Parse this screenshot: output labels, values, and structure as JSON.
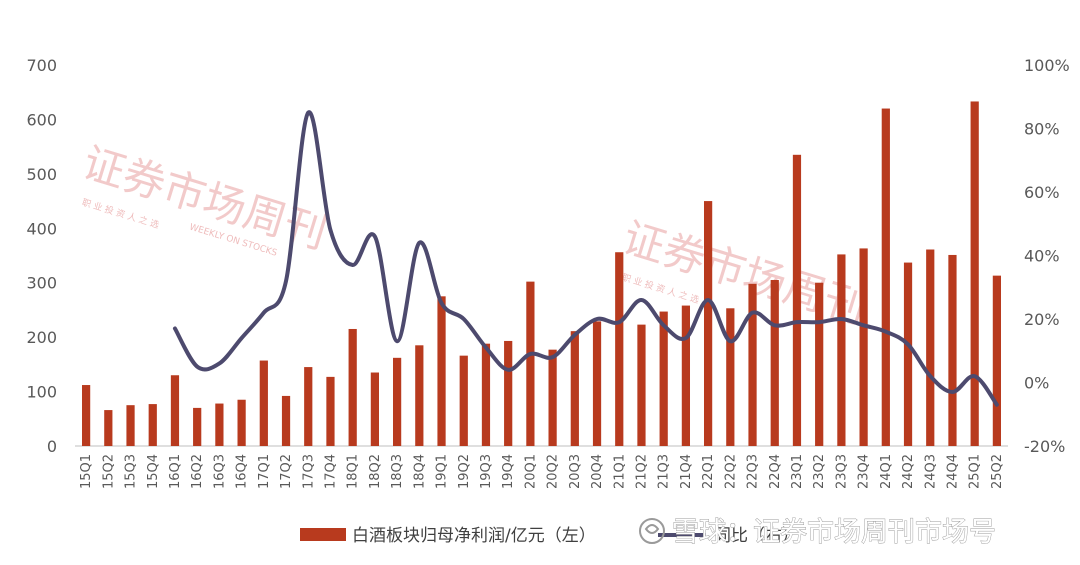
{
  "chart_data": {
    "type": "bar",
    "categories": [
      "15Q1",
      "15Q2",
      "15Q3",
      "15Q4",
      "16Q1",
      "16Q2",
      "16Q3",
      "16Q4",
      "17Q1",
      "17Q2",
      "17Q3",
      "17Q4",
      "18Q1",
      "18Q2",
      "18Q3",
      "18Q4",
      "19Q1",
      "19Q2",
      "19Q3",
      "19Q4",
      "20Q1",
      "20Q2",
      "20Q3",
      "20Q4",
      "21Q1",
      "21Q2",
      "21Q3",
      "21Q4",
      "22Q1",
      "22Q2",
      "22Q3",
      "22Q4",
      "23Q1",
      "23Q2",
      "23Q3",
      "23Q4",
      "24Q1",
      "24Q2",
      "24Q3",
      "24Q4",
      "25Q1",
      "25Q2"
    ],
    "series": [
      {
        "name": "白酒板块归母净利润/亿元（左）",
        "axis": "left",
        "type": "bar",
        "color": "#B83A1E",
        "values": [
          112,
          66,
          75,
          77,
          130,
          70,
          78,
          85,
          157,
          92,
          145,
          127,
          215,
          135,
          162,
          185,
          275,
          166,
          188,
          193,
          302,
          177,
          211,
          229,
          356,
          223,
          247,
          258,
          450,
          253,
          298,
          305,
          535,
          300,
          352,
          363,
          620,
          337,
          361,
          351,
          633,
          313
        ]
      },
      {
        "name": "同比（右）",
        "axis": "right",
        "type": "line",
        "color": "#4D4A6E",
        "values": [
          null,
          null,
          null,
          null,
          17,
          5,
          6,
          14,
          22,
          32,
          85,
          48,
          37,
          46,
          13,
          44,
          25,
          20,
          11,
          4,
          9,
          8,
          15,
          20,
          19,
          26,
          18,
          14,
          26,
          13,
          22,
          18,
          19,
          19,
          20,
          18,
          16,
          12,
          2,
          -3,
          2,
          -7
        ]
      }
    ],
    "y_left": {
      "range": [
        0,
        700
      ],
      "ticks": [
        "0",
        "100",
        "200",
        "300",
        "400",
        "500",
        "600",
        "700"
      ]
    },
    "y_right": {
      "range": [
        -20,
        100
      ],
      "ticks": [
        "-20%",
        "0%",
        "20%",
        "40%",
        "60%",
        "80%",
        "100%"
      ]
    },
    "grid": false,
    "legend_position": "bottom"
  },
  "legend": {
    "bar_label": "白酒板块归母净利润/亿元（左）",
    "line_label": "同比（右）"
  },
  "watermarks": {
    "big_text": "证券市场周刊",
    "small_text": "职 业 投 资 人 之 选",
    "english_text": "WEEKLY ON STOCKS",
    "footer_text": "雪球：证券市场周刊市场号"
  }
}
